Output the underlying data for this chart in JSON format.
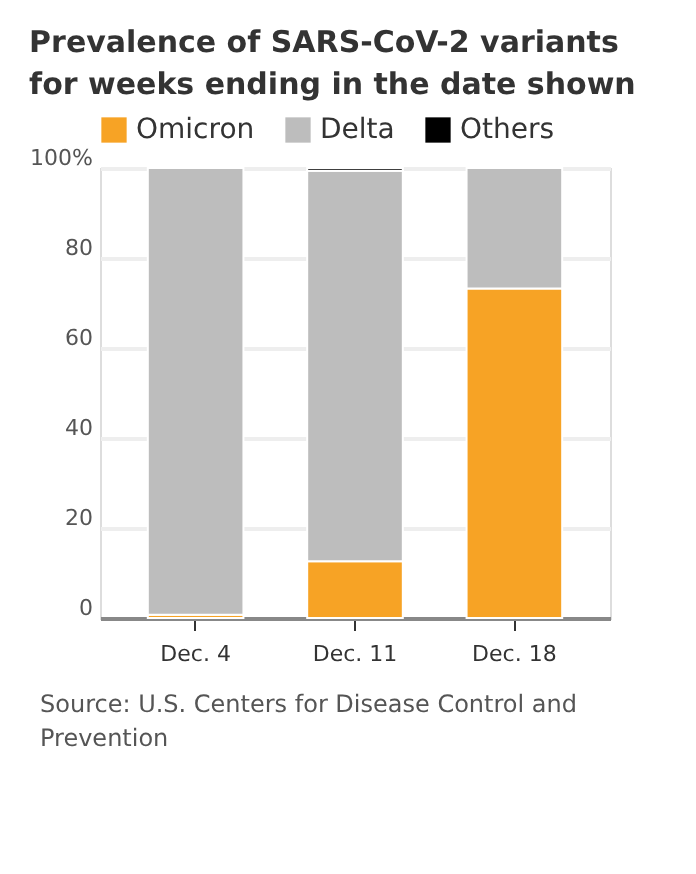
{
  "chart_data": {
    "type": "bar",
    "stacked": true,
    "title": "Prevalence of SARS-CoV-2 variants for weeks ending in the date shown",
    "categories": [
      "Dec. 4",
      "Dec. 11",
      "Dec. 18"
    ],
    "series": [
      {
        "name": "Omicron",
        "color": "#f7a325",
        "values": [
          0.7,
          12.6,
          73.2
        ]
      },
      {
        "name": "Delta",
        "color": "#bdbdbd",
        "values": [
          99.3,
          86.8,
          26.8
        ]
      },
      {
        "name": "Others",
        "color": "#000000",
        "values": [
          null,
          0.6,
          null
        ]
      }
    ],
    "ylim": [
      0,
      100
    ],
    "yticks": [
      0,
      20,
      40,
      60,
      80,
      {
        "value": 100,
        "label": "100%"
      }
    ],
    "grid": "y",
    "legend": "top left",
    "annotations": [
      "Source: U.S. Centers for Disease Control and Prevention"
    ]
  }
}
